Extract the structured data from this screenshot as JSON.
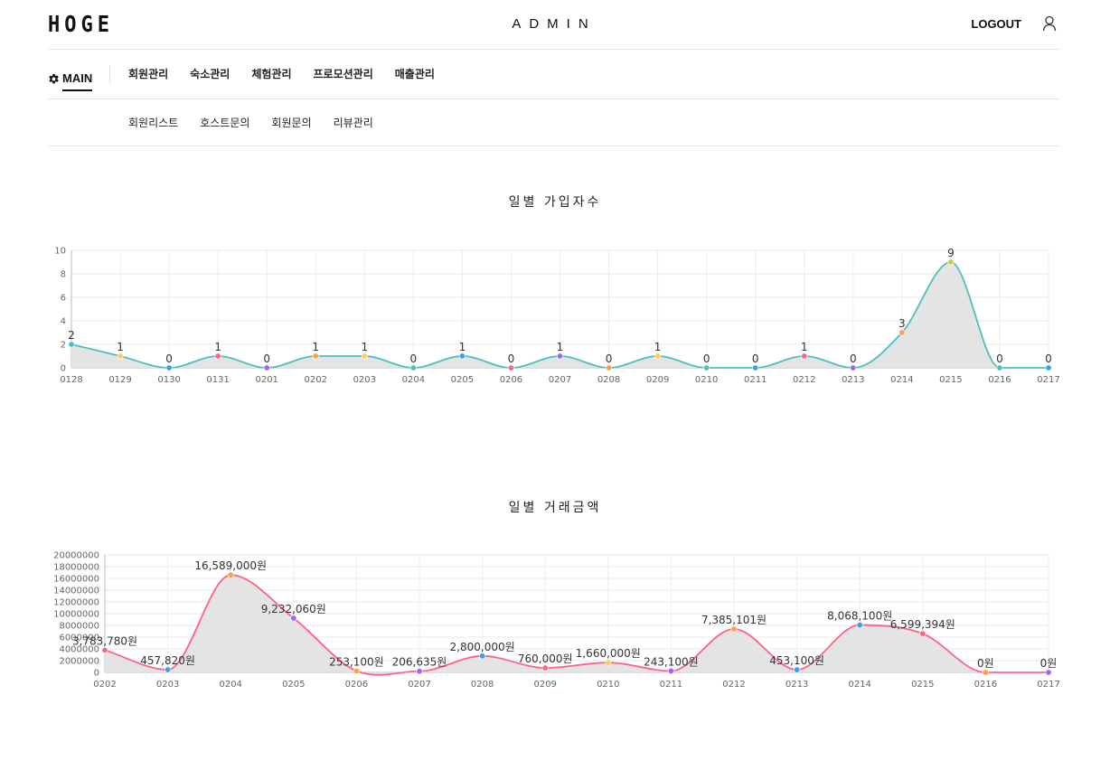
{
  "header": {
    "logo": "HOGE",
    "title": "ADMIN",
    "logout_label": "LOGOUT"
  },
  "nav": {
    "main_label": "MAIN",
    "items": [
      "회원관리",
      "숙소관리",
      "체험관리",
      "프로모션관리",
      "매출관리"
    ]
  },
  "subnav": {
    "items": [
      "회원리스트",
      "호스트문의",
      "회원문의",
      "리뷰관리"
    ]
  },
  "chart_data": [
    {
      "type": "area",
      "title": "일별 가입자수",
      "xlabel": "",
      "ylabel": "",
      "x": [
        "0128",
        "0129",
        "0130",
        "0131",
        "0201",
        "0202",
        "0203",
        "0204",
        "0205",
        "0206",
        "0207",
        "0208",
        "0209",
        "0210",
        "0211",
        "0212",
        "0213",
        "0214",
        "0215",
        "0216",
        "0217"
      ],
      "values": [
        2,
        1,
        0,
        1,
        0,
        1,
        1,
        0,
        1,
        0,
        1,
        0,
        1,
        0,
        0,
        1,
        0,
        3,
        9,
        0,
        0
      ],
      "data_labels": [
        "2",
        "1",
        "0",
        "1",
        "0",
        "1",
        "1",
        "0",
        "1",
        "0",
        "1",
        "0",
        "1",
        "0",
        "0",
        "1",
        "0",
        "3",
        "9",
        "0",
        "0"
      ],
      "ylim": [
        0,
        10
      ],
      "yticks": [
        "0",
        "2",
        "4",
        "6",
        "8",
        "10"
      ],
      "line_color": "#4bc0c0",
      "fill_color": "#e3e3e3",
      "grid": true,
      "point_colors": [
        "#4bc0c0",
        "#ffcd56",
        "#36a2eb",
        "#ff6384",
        "#9966ff",
        "#ff9f40",
        "#ffcd56",
        "#4bc0c0",
        "#36a2eb",
        "#ff6384",
        "#9966ff",
        "#ff9f40",
        "#ffcd56",
        "#4bc0c0",
        "#36a2eb",
        "#ff6384",
        "#9966ff",
        "#ff9f40",
        "#c9cb3f",
        "#4bc0c0",
        "#36a2eb"
      ]
    },
    {
      "type": "area",
      "title": "일별 거래금액",
      "xlabel": "",
      "ylabel": "",
      "x": [
        "0202",
        "0203",
        "0204",
        "0205",
        "0206",
        "0207",
        "0208",
        "0209",
        "0210",
        "0211",
        "0212",
        "0213",
        "0214",
        "0215",
        "0216",
        "0217"
      ],
      "values": [
        3783780,
        457820,
        16589000,
        9232060,
        253100,
        206635,
        2800000,
        760000,
        1660000,
        243100,
        7385101,
        453100,
        8068100,
        6599394,
        0,
        0
      ],
      "data_labels": [
        "3,783,780원",
        "457,820원",
        "16,589,000원",
        "9,232,060원",
        "253,100원",
        "206,635원",
        "2,800,000원",
        "760,000원",
        "1,660,000원",
        "243,100원",
        "7,385,101원",
        "453,100원",
        "8,068,100원",
        "6,599,394원",
        "0원",
        "0원"
      ],
      "ylim": [
        0,
        20000000
      ],
      "yticks": [
        "0",
        "2000000",
        "4000000",
        "6000000",
        "8000000",
        "10000000",
        "12000000",
        "14000000",
        "16000000",
        "18000000",
        "20000000"
      ],
      "line_color": "#ff6384",
      "fill_color": "#e3e3e3",
      "grid": true,
      "point_colors": [
        "#ff6384",
        "#36a2eb",
        "#ff9f40",
        "#9966ff",
        "#ff9f40",
        "#9966ff",
        "#36a2eb",
        "#ff6384",
        "#ffcd56",
        "#9966ff",
        "#ff9f40",
        "#36a2eb",
        "#36a2eb",
        "#ff6384",
        "#ff9f40",
        "#9966ff"
      ]
    }
  ]
}
